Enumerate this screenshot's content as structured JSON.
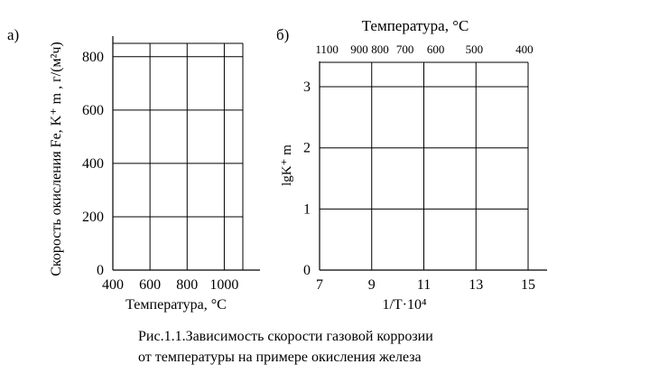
{
  "figure": {
    "caption_line1": "Рис.1.1.Зависимость скорости газовой коррозии",
    "caption_line2": "от температуры на примере окисления железа"
  },
  "chart_data": [
    {
      "panel_label": "а)",
      "type": "line",
      "title": "",
      "xlabel": "Температура, °C",
      "ylabel": "Скорость окисления Fe, K⁺ m , г/(м²ч)",
      "xlim": [
        400,
        1100
      ],
      "ylim": [
        0,
        850
      ],
      "x_ticks": [
        400,
        600,
        800,
        1000
      ],
      "x_tick_labels": [
        "400",
        "600",
        "800",
        "1000"
      ],
      "y_ticks": [
        0,
        200,
        400,
        600,
        800
      ],
      "y_tick_labels": [
        "0",
        "200",
        "400",
        "600",
        "800"
      ],
      "grid": true,
      "series": []
    },
    {
      "panel_label": "б)",
      "type": "line",
      "title": "",
      "xlabel": "1/T·10⁴",
      "ylabel": "lgK⁺ m",
      "top_axis_label": "Температура, °C",
      "top_axis_ticks": [
        "1100",
        "900",
        "800",
        "700",
        "600",
        "500",
        "400"
      ],
      "xlim": [
        7,
        15
      ],
      "ylim": [
        0,
        3.4
      ],
      "x_ticks": [
        7,
        9,
        11,
        13,
        15
      ],
      "x_tick_labels": [
        "7",
        "9",
        "11",
        "13",
        "15"
      ],
      "y_ticks": [
        0,
        1,
        2,
        3
      ],
      "y_tick_labels": [
        "0",
        "1",
        "2",
        "3"
      ],
      "grid": true,
      "series": []
    }
  ]
}
